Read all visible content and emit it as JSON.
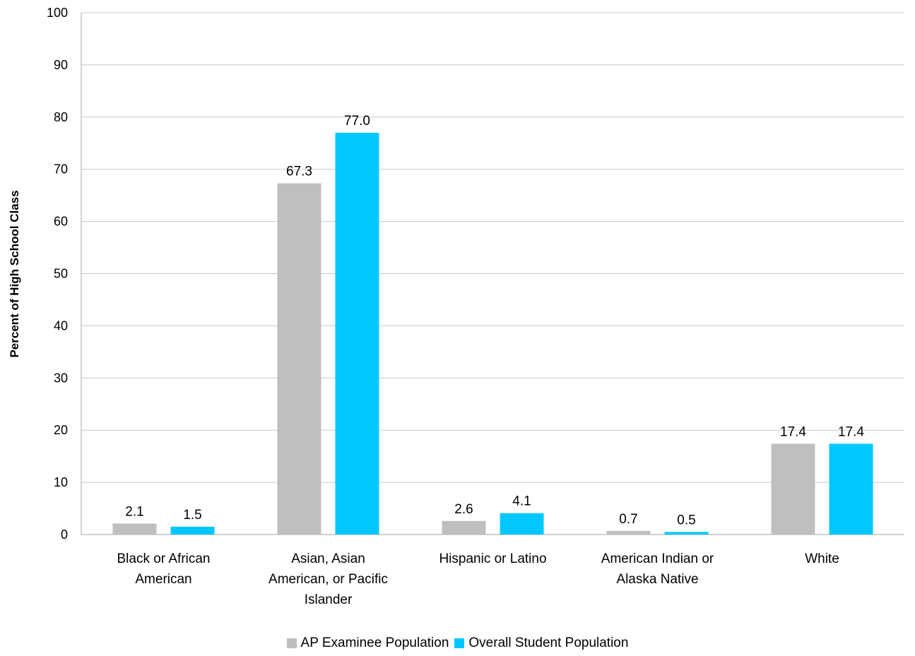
{
  "chart_data": {
    "type": "bar",
    "title": "",
    "xlabel": "",
    "ylabel": "Percent of High School Class",
    "ylim": [
      0,
      100
    ],
    "yticks": [
      "0",
      "10",
      "20",
      "30",
      "40",
      "50",
      "60",
      "70",
      "80",
      "90",
      "100"
    ],
    "grid": true,
    "legend_position": "bottom",
    "categories": [
      [
        "Black or African",
        "American"
      ],
      [
        "Asian, Asian",
        "American, or Pacific",
        "Islander"
      ],
      [
        "Hispanic or Latino"
      ],
      [
        "American Indian or",
        "Alaska Native"
      ],
      [
        "White"
      ]
    ],
    "series": [
      {
        "name": "AP Examinee Population",
        "color": "#bfbfbf",
        "values": [
          2.1,
          67.3,
          2.6,
          0.7,
          17.4
        ],
        "labels": [
          "2.1",
          "67.3",
          "2.6",
          "0.7",
          "17.4"
        ]
      },
      {
        "name": "Overall Student Population",
        "color": "#00c8ff",
        "values": [
          1.5,
          77.0,
          4.1,
          0.5,
          17.4
        ],
        "labels": [
          "1.5",
          "77.0",
          "4.1",
          "0.5",
          "17.4"
        ]
      }
    ]
  }
}
